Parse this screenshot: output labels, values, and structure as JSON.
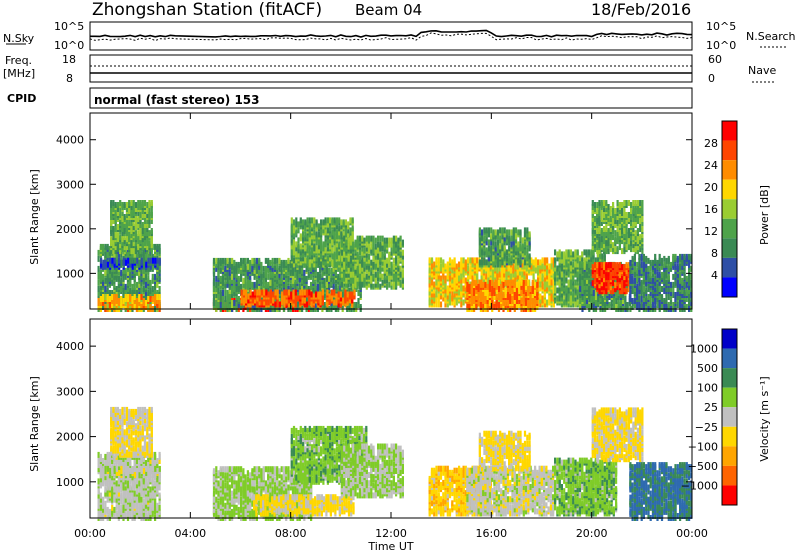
{
  "header": {
    "title": "Zhongshan Station (fitACF)",
    "beam": "Beam 04",
    "date": "18/Feb/2016"
  },
  "top_panels": {
    "nsky_label": "N.Sky",
    "nsearch_label": "N.Search",
    "noise_ticks": [
      "10^5",
      "10^0"
    ],
    "freq_label": "Freq.",
    "freq_unit": "[MHz]",
    "freq_ticks": [
      "18",
      "8"
    ],
    "nave_label": "Nave",
    "nave_ticks": [
      "60",
      "0"
    ],
    "cpid_label": "CPID",
    "cpid_text": "normal (fast stereo) 153"
  },
  "colors": {
    "power": [
      "#0000ff",
      "#2e4fa6",
      "#3a8a54",
      "#4ea34a",
      "#9acd32",
      "#ffd700",
      "#ff8c00",
      "#ff4500",
      "#ff0000"
    ],
    "velocity": [
      "#ff0000",
      "#ff6400",
      "#ffa500",
      "#ffd700",
      "#c0c0c0",
      "#7fcc28",
      "#3a8a54",
      "#2e6ab0",
      "#0000c8"
    ],
    "gray": "#c8c8c8"
  },
  "chart_data": [
    {
      "type": "heatmap",
      "name": "power",
      "ylabel": "Slant Range [km]",
      "xlabel": "",
      "x_ticks": [
        "00:00",
        "04:00",
        "08:00",
        "12:00",
        "16:00",
        "20:00",
        "00:00"
      ],
      "y_ticks": [
        1000,
        2000,
        3000,
        4000
      ],
      "ylim": [
        200,
        4600
      ],
      "xlim_hours": [
        0,
        24
      ],
      "colorbar": {
        "title": "Power [dB]",
        "ticks": [
          "4",
          "8",
          "12",
          "16",
          "20",
          "24",
          "28"
        ],
        "range": [
          0,
          30
        ]
      },
      "regions": [
        {
          "t": [
            0.3,
            2.8
          ],
          "r": [
            200,
            1600
          ],
          "v": 10
        },
        {
          "t": [
            0.4,
            2.8
          ],
          "r": [
            1150,
            1300
          ],
          "v": 5
        },
        {
          "t": [
            0.3,
            2.8
          ],
          "r": [
            200,
            500
          ],
          "v": 20
        },
        {
          "t": [
            0.8,
            2.5
          ],
          "r": [
            1500,
            2600
          ],
          "v": 12
        },
        {
          "t": [
            4.9,
            8.8
          ],
          "r": [
            200,
            400
          ],
          "v": 28
        },
        {
          "t": [
            4.9,
            10.8
          ],
          "r": [
            200,
            1300
          ],
          "v": 10
        },
        {
          "t": [
            6.0,
            10.5
          ],
          "r": [
            300,
            600
          ],
          "v": 24
        },
        {
          "t": [
            8.0,
            10.5
          ],
          "r": [
            1200,
            2200
          ],
          "v": 12
        },
        {
          "t": [
            10.0,
            12.5
          ],
          "r": [
            700,
            1800
          ],
          "v": 12
        },
        {
          "t": [
            13.5,
            18.5
          ],
          "r": [
            300,
            1300
          ],
          "v": 18
        },
        {
          "t": [
            15.0,
            17.8
          ],
          "r": [
            200,
            800
          ],
          "v": 22
        },
        {
          "t": [
            15.5,
            17.5
          ],
          "r": [
            1200,
            2000
          ],
          "v": 10
        },
        {
          "t": [
            18.5,
            20.5
          ],
          "r": [
            300,
            1500
          ],
          "v": 12
        },
        {
          "t": [
            19.5,
            21.5
          ],
          "r": [
            200,
            1200
          ],
          "v": 10
        },
        {
          "t": [
            20.0,
            21.5
          ],
          "r": [
            600,
            1200
          ],
          "v": 26
        },
        {
          "t": [
            20.0,
            22.0
          ],
          "r": [
            1500,
            2600
          ],
          "v": 12
        },
        {
          "t": [
            21.5,
            24.0
          ],
          "r": [
            200,
            1400
          ],
          "v": 8
        }
      ]
    },
    {
      "type": "heatmap",
      "name": "velocity",
      "ylabel": "Slant Range [km]",
      "xlabel": "Time UT",
      "x_ticks": [
        "00:00",
        "04:00",
        "08:00",
        "12:00",
        "16:00",
        "20:00",
        "00:00"
      ],
      "y_ticks": [
        1000,
        2000,
        3000,
        4000
      ],
      "ylim": [
        200,
        4600
      ],
      "xlim_hours": [
        0,
        24
      ],
      "colorbar": {
        "title": "Velocity [m s⁻¹]",
        "ticks": [
          "1000",
          "500",
          "100",
          "25",
          "−25",
          "−100",
          "−500",
          "−1000"
        ],
        "range": [
          -1200,
          1200
        ]
      },
      "regions": [
        {
          "t": [
            0.3,
            2.8
          ],
          "r": [
            200,
            1600
          ],
          "v": 60
        },
        {
          "t": [
            0.4,
            2.8
          ],
          "r": [
            1150,
            1300
          ],
          "v": 0
        },
        {
          "t": [
            0.8,
            2.5
          ],
          "r": [
            1600,
            2600
          ],
          "v": -150
        },
        {
          "t": [
            4.9,
            8.8
          ],
          "r": [
            200,
            1300
          ],
          "v": 200
        },
        {
          "t": [
            6.5,
            10.5
          ],
          "r": [
            300,
            700
          ],
          "v": -200
        },
        {
          "t": [
            8.0,
            11.0
          ],
          "r": [
            1000,
            2200
          ],
          "v": 300
        },
        {
          "t": [
            10.0,
            12.5
          ],
          "r": [
            700,
            1800
          ],
          "v": 150
        },
        {
          "t": [
            13.5,
            16.0
          ],
          "r": [
            300,
            1300
          ],
          "v": -300
        },
        {
          "t": [
            15.0,
            18.5
          ],
          "r": [
            300,
            1300
          ],
          "v": 0
        },
        {
          "t": [
            15.5,
            17.5
          ],
          "r": [
            1300,
            2100
          ],
          "v": -200
        },
        {
          "t": [
            18.5,
            21.0
          ],
          "r": [
            300,
            1500
          ],
          "v": 300
        },
        {
          "t": [
            20.0,
            22.0
          ],
          "r": [
            1500,
            2600
          ],
          "v": -200
        },
        {
          "t": [
            21.5,
            24.0
          ],
          "r": [
            200,
            1400
          ],
          "v": 700
        }
      ]
    }
  ]
}
